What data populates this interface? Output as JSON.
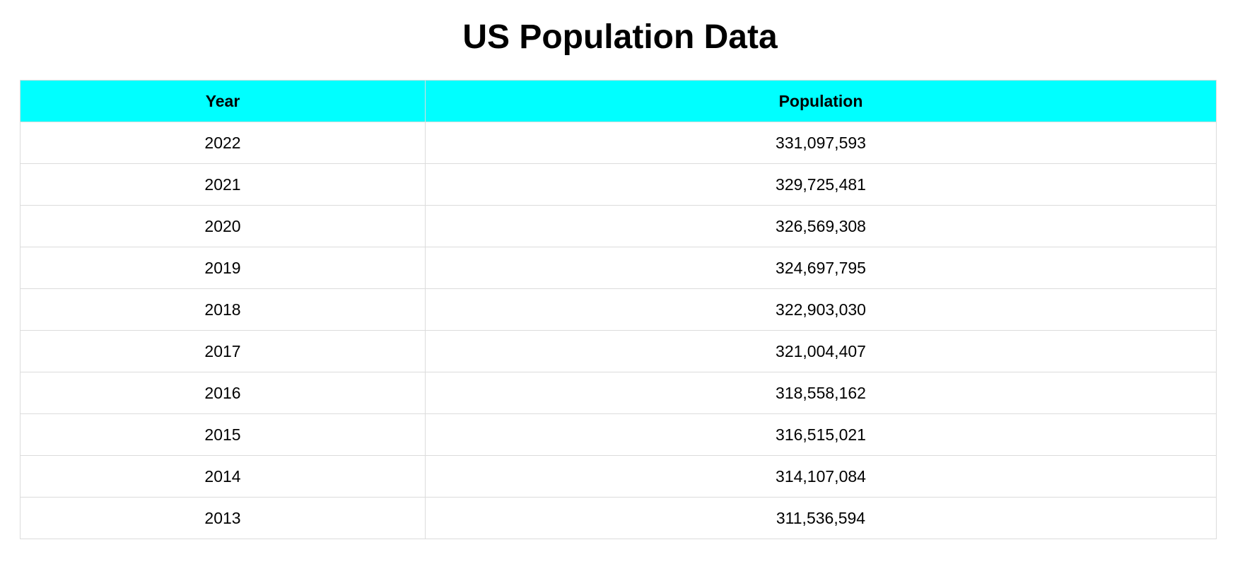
{
  "header_color": "#00ffff",
  "chart_data": {
    "type": "table",
    "title": "US Population Data",
    "columns": [
      "Year",
      "Population"
    ],
    "rows": [
      [
        "2022",
        "331,097,593"
      ],
      [
        "2021",
        "329,725,481"
      ],
      [
        "2020",
        "326,569,308"
      ],
      [
        "2019",
        "324,697,795"
      ],
      [
        "2018",
        "322,903,030"
      ],
      [
        "2017",
        "321,004,407"
      ],
      [
        "2016",
        "318,558,162"
      ],
      [
        "2015",
        "316,515,021"
      ],
      [
        "2014",
        "314,107,084"
      ],
      [
        "2013",
        "311,536,594"
      ]
    ]
  }
}
